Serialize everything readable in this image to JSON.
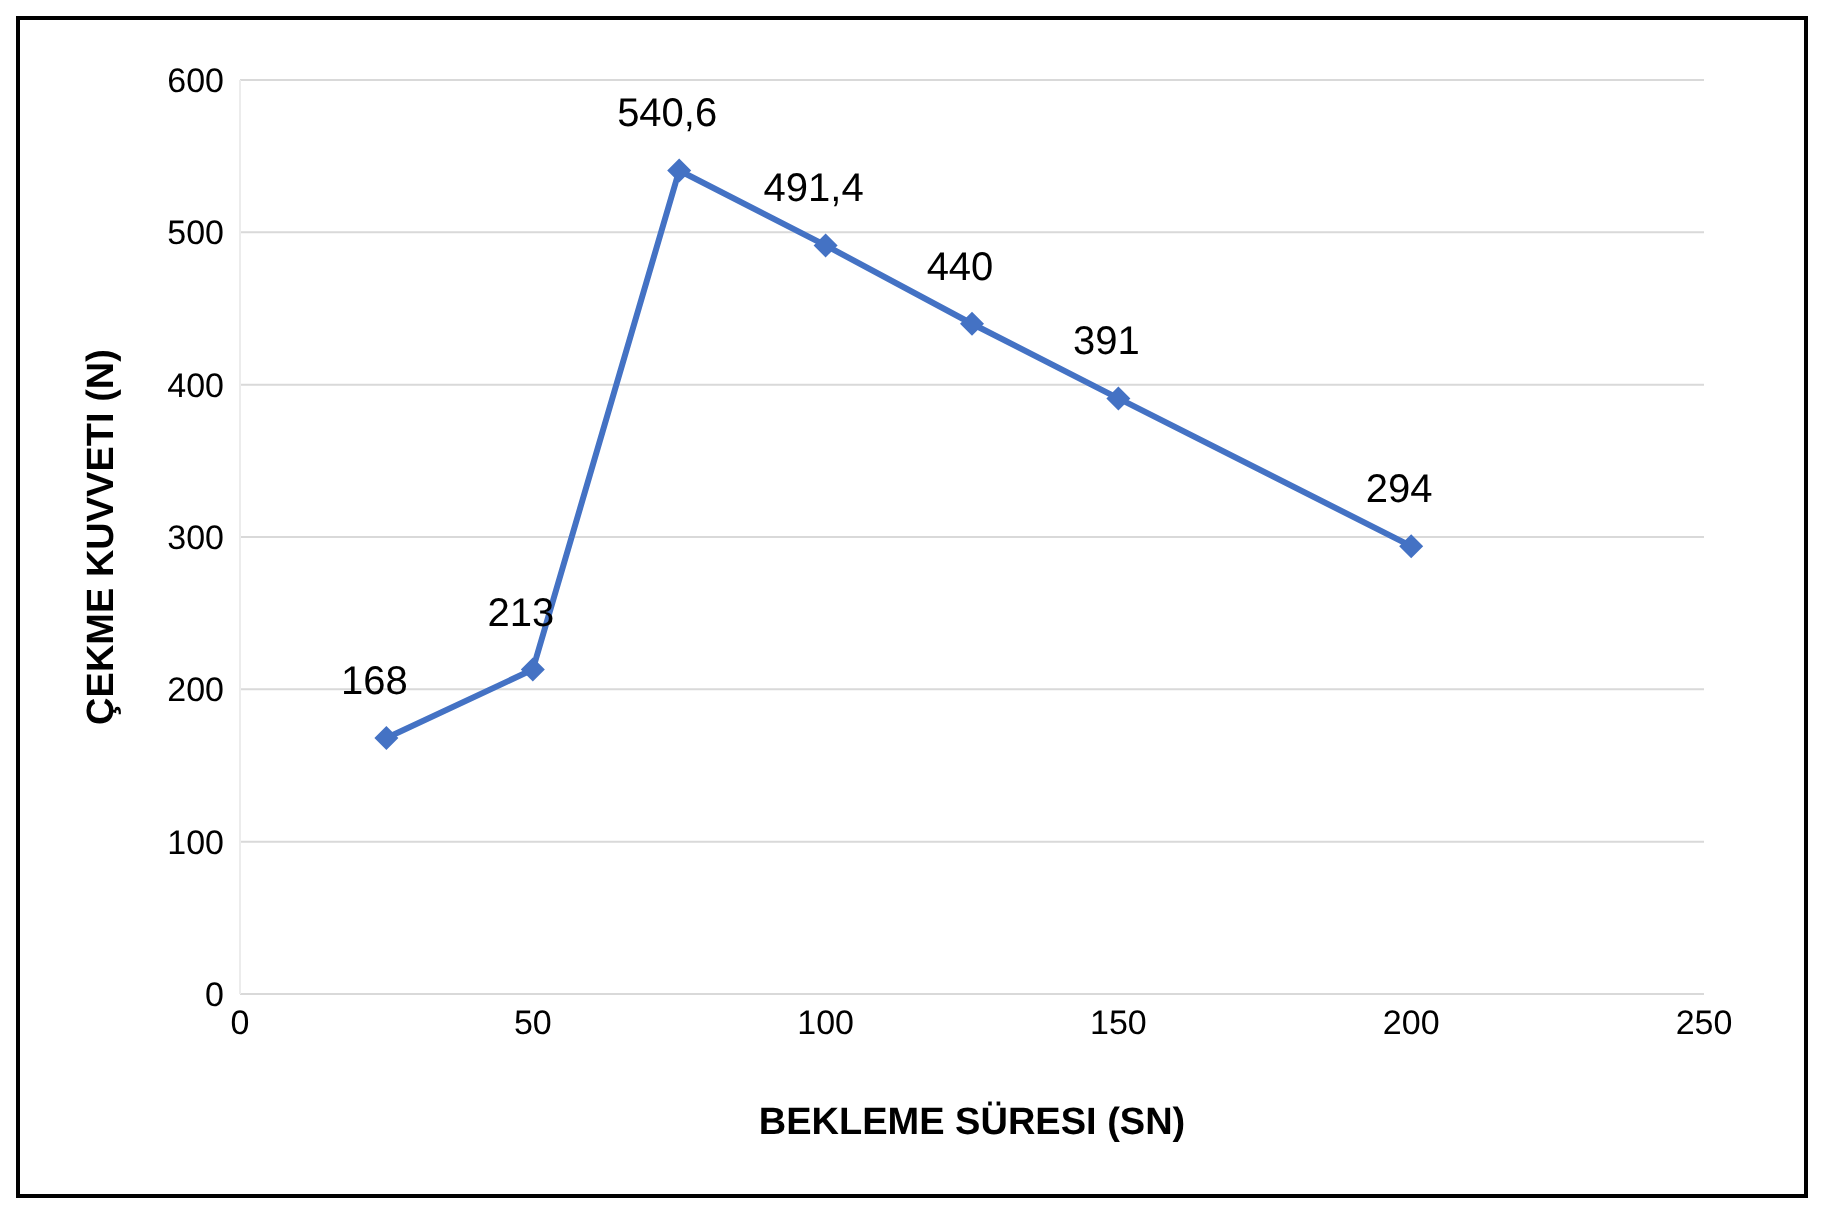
{
  "chart_data": {
    "type": "line",
    "xlabel": "BEKLEME SÜRESI (SN)",
    "ylabel": "ÇEKME KUVVETI (N)",
    "x": [
      25,
      50,
      75,
      100,
      125,
      150,
      200
    ],
    "series": [
      {
        "color": "#4472c4",
        "values": [
          168,
          213,
          540.6,
          491.4,
          440,
          391,
          294
        ],
        "value_labels": [
          "168",
          "213",
          "540,6",
          "491,4",
          "440",
          "391",
          "294"
        ]
      }
    ],
    "xlim": [
      0,
      250
    ],
    "xticks": [
      0,
      50,
      100,
      150,
      200,
      250
    ],
    "ylim": [
      0,
      600
    ],
    "yticks": [
      0,
      100,
      200,
      300,
      400,
      500,
      600
    ],
    "grid": "y",
    "marker": "diamond",
    "line_style": "solid",
    "legend": false
  }
}
